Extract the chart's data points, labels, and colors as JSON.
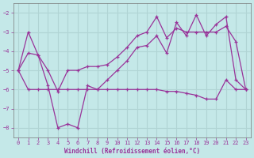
{
  "xlabel": "Windchill (Refroidissement éolien,°C)",
  "xlim": [
    -0.5,
    23.5
  ],
  "ylim": [
    -8.5,
    -1.5
  ],
  "yticks": [
    -8,
    -7,
    -6,
    -5,
    -4,
    -3,
    -2
  ],
  "xticks": [
    0,
    1,
    2,
    3,
    4,
    5,
    6,
    7,
    8,
    9,
    10,
    11,
    12,
    13,
    14,
    15,
    16,
    17,
    18,
    19,
    20,
    21,
    22,
    23
  ],
  "background_color": "#c4e8e8",
  "line_color": "#993399",
  "grid_color": "#b0d4d4",
  "line1_x": [
    0,
    1,
    2,
    3,
    4,
    5,
    6,
    7,
    8,
    9,
    10,
    11,
    12,
    13,
    14,
    15,
    16,
    17,
    18,
    19,
    20,
    21,
    22,
    23
  ],
  "line1_y": [
    -5.0,
    -3.0,
    -4.2,
    -5.8,
    -8.0,
    -7.8,
    -8.0,
    -5.8,
    -6.0,
    -5.5,
    -5.0,
    -4.5,
    -3.8,
    -3.7,
    -3.2,
    -4.1,
    -2.5,
    -3.2,
    -2.1,
    -3.2,
    -2.6,
    -2.2,
    -5.5,
    -6.0
  ],
  "line2_x": [
    0,
    1,
    2,
    3,
    4,
    5,
    6,
    7,
    8,
    9,
    10,
    11,
    12,
    13,
    14,
    15,
    16,
    17,
    18,
    19,
    20,
    21,
    22,
    23
  ],
  "line2_y": [
    -5.0,
    -4.1,
    -4.2,
    -5.0,
    -6.1,
    -5.0,
    -5.0,
    -4.8,
    -4.8,
    -4.7,
    -4.3,
    -3.8,
    -3.2,
    -3.0,
    -2.2,
    -3.3,
    -2.8,
    -3.0,
    -3.0,
    -3.0,
    -3.0,
    -2.7,
    -3.5,
    -6.0
  ],
  "line3_x": [
    0,
    1,
    2,
    3,
    4,
    5,
    6,
    7,
    8,
    9,
    10,
    11,
    12,
    13,
    14,
    15,
    16,
    17,
    18,
    19,
    20,
    21,
    22,
    23
  ],
  "line3_y": [
    -5.0,
    -6.0,
    -6.0,
    -6.0,
    -6.0,
    -6.0,
    -6.0,
    -6.0,
    -6.0,
    -6.0,
    -6.0,
    -6.0,
    -6.0,
    -6.0,
    -6.0,
    -6.1,
    -6.1,
    -6.2,
    -6.3,
    -6.5,
    -6.5,
    -5.5,
    -6.0,
    -6.0
  ]
}
